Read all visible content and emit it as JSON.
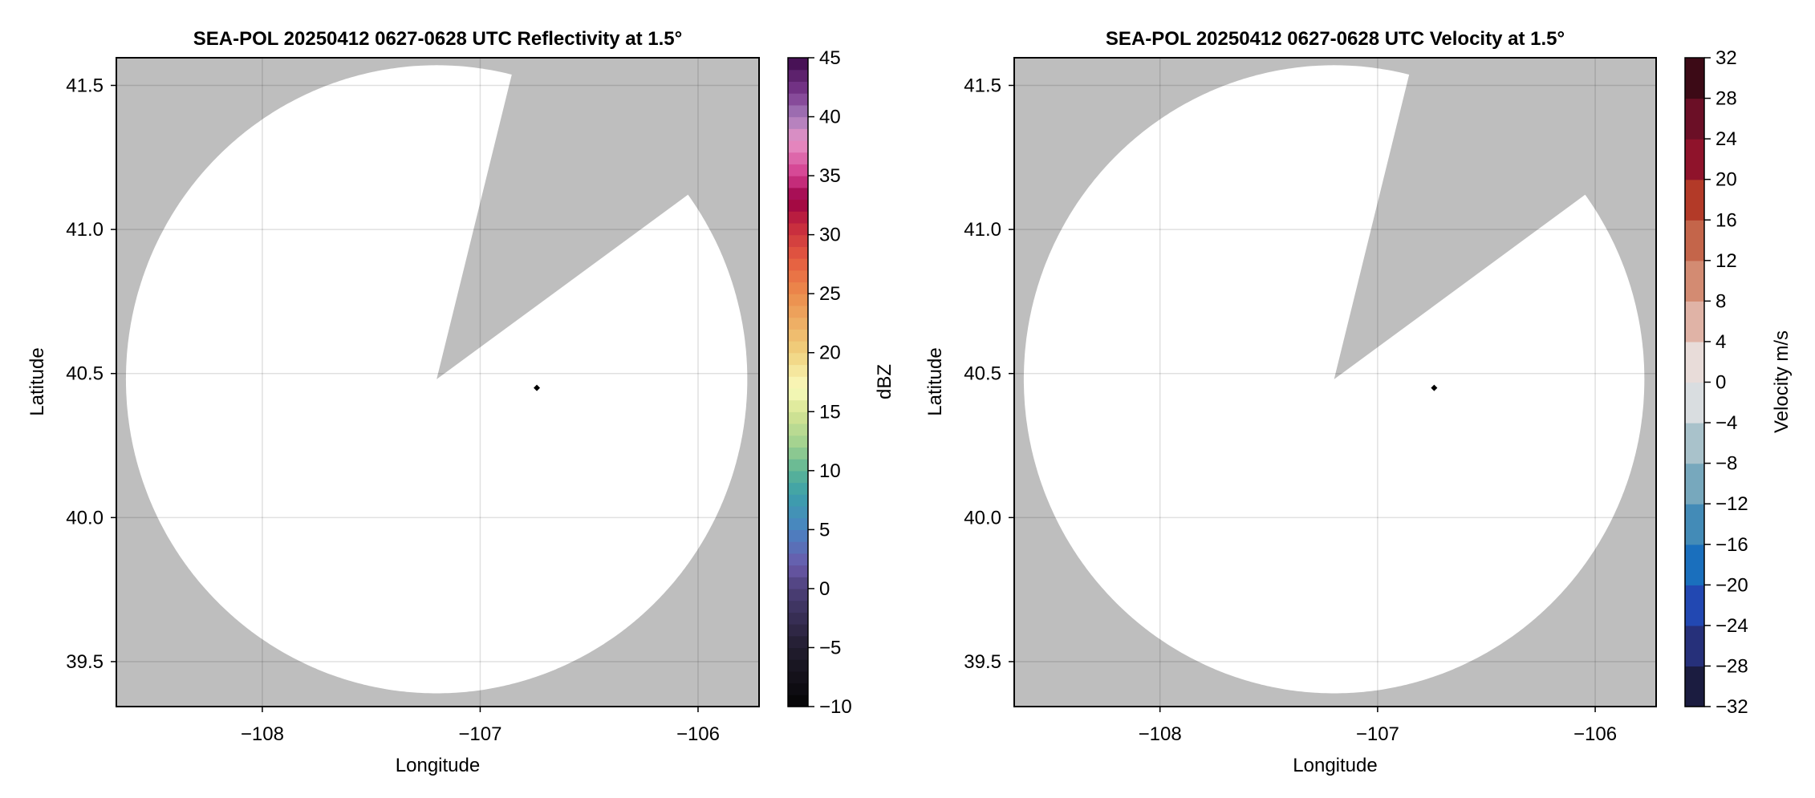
{
  "chart_data": [
    {
      "type": "heatmap",
      "title": "SEA-POL 20250412 0627-0628 UTC Reflectivity at 1.5°",
      "xlabel": "Longitude",
      "ylabel": "Latitude",
      "xlim": [
        -108.67,
        -105.72
      ],
      "ylim": [
        39.344,
        41.596
      ],
      "xticks": [
        -108,
        -107,
        -106
      ],
      "xtick_labels": [
        "−108",
        "−107",
        "−106"
      ],
      "yticks": [
        39.5,
        40.0,
        40.5,
        41.0,
        41.5
      ],
      "ytick_labels": [
        "39.5",
        "40.0",
        "40.5",
        "41.0",
        "41.5"
      ],
      "grid": true,
      "background_color": "#bebebe",
      "coverage_color": "#ffffff",
      "coverage": {
        "center": [
          -107.2,
          40.48
        ],
        "radius_deg": [
          1.426,
          1.09
        ],
        "blank_sector_deg": [
          14,
          54
        ]
      },
      "marker": {
        "lon": -106.74,
        "lat": 40.45,
        "color": "#000000"
      },
      "colorbar": {
        "label": "dBZ",
        "range": [
          -10,
          45
        ],
        "step": 1,
        "ticks": [
          -10,
          -5,
          0,
          5,
          10,
          15,
          20,
          25,
          30,
          35,
          40,
          45
        ],
        "tick_labels": [
          "−10",
          "−5",
          "0",
          "5",
          "10",
          "15",
          "20",
          "25",
          "30",
          "35",
          "40",
          "45"
        ],
        "stops": [
          [
            -10,
            "#050505"
          ],
          [
            -5,
            "#221d2f"
          ],
          [
            0,
            "#4c3f78"
          ],
          [
            2,
            "#6a5aab"
          ],
          [
            5,
            "#4a83c2"
          ],
          [
            8,
            "#3ca0aa"
          ],
          [
            10,
            "#5cb496"
          ],
          [
            12,
            "#9bcf8f"
          ],
          [
            15,
            "#d7e594"
          ],
          [
            17,
            "#f9fbbd"
          ],
          [
            20,
            "#f0d27e"
          ],
          [
            25,
            "#ec8c4c"
          ],
          [
            28,
            "#e55b40"
          ],
          [
            31,
            "#c3263e"
          ],
          [
            33,
            "#9a0044"
          ],
          [
            35,
            "#d23a8c"
          ],
          [
            38,
            "#e894c7"
          ],
          [
            40,
            "#a77cbb"
          ],
          [
            42,
            "#7c3a8f"
          ],
          [
            45,
            "#3d0a4a"
          ]
        ]
      }
    },
    {
      "type": "heatmap",
      "title": "SEA-POL 20250412 0627-0628 UTC Velocity at 1.5°",
      "xlabel": "Longitude",
      "ylabel": "Latitude",
      "xlim": [
        -108.67,
        -105.72
      ],
      "ylim": [
        39.344,
        41.596
      ],
      "xticks": [
        -108,
        -107,
        -106
      ],
      "xtick_labels": [
        "−108",
        "−107",
        "−106"
      ],
      "yticks": [
        39.5,
        40.0,
        40.5,
        41.0,
        41.5
      ],
      "ytick_labels": [
        "39.5",
        "40.0",
        "40.5",
        "41.0",
        "41.5"
      ],
      "grid": true,
      "background_color": "#bebebe",
      "coverage_color": "#ffffff",
      "coverage": {
        "center": [
          -107.2,
          40.48
        ],
        "radius_deg": [
          1.426,
          1.09
        ],
        "blank_sector_deg": [
          14,
          54
        ]
      },
      "marker": {
        "lon": -106.74,
        "lat": 40.45,
        "color": "#000000"
      },
      "colorbar": {
        "label": "Velocity m/s",
        "range": [
          -32,
          32
        ],
        "step": 4,
        "ticks": [
          -32,
          -28,
          -24,
          -20,
          -16,
          -12,
          -8,
          -4,
          0,
          4,
          8,
          12,
          16,
          20,
          24,
          28,
          32
        ],
        "tick_labels": [
          "−32",
          "−28",
          "−24",
          "−20",
          "−16",
          "−12",
          "−8",
          "−4",
          "0",
          "4",
          "8",
          "12",
          "16",
          "20",
          "24",
          "28",
          "32"
        ],
        "bands": [
          "#1b1c40",
          "#26307a",
          "#2248b2",
          "#1a6fbd",
          "#438bb7",
          "#77a8bd",
          "#a9c2cb",
          "#d9dde0",
          "#e8dcd9",
          "#e0b3a6",
          "#d38b72",
          "#c4654a",
          "#b33a28",
          "#8f132b",
          "#6b0f26",
          "#3c0a16"
        ]
      }
    }
  ]
}
